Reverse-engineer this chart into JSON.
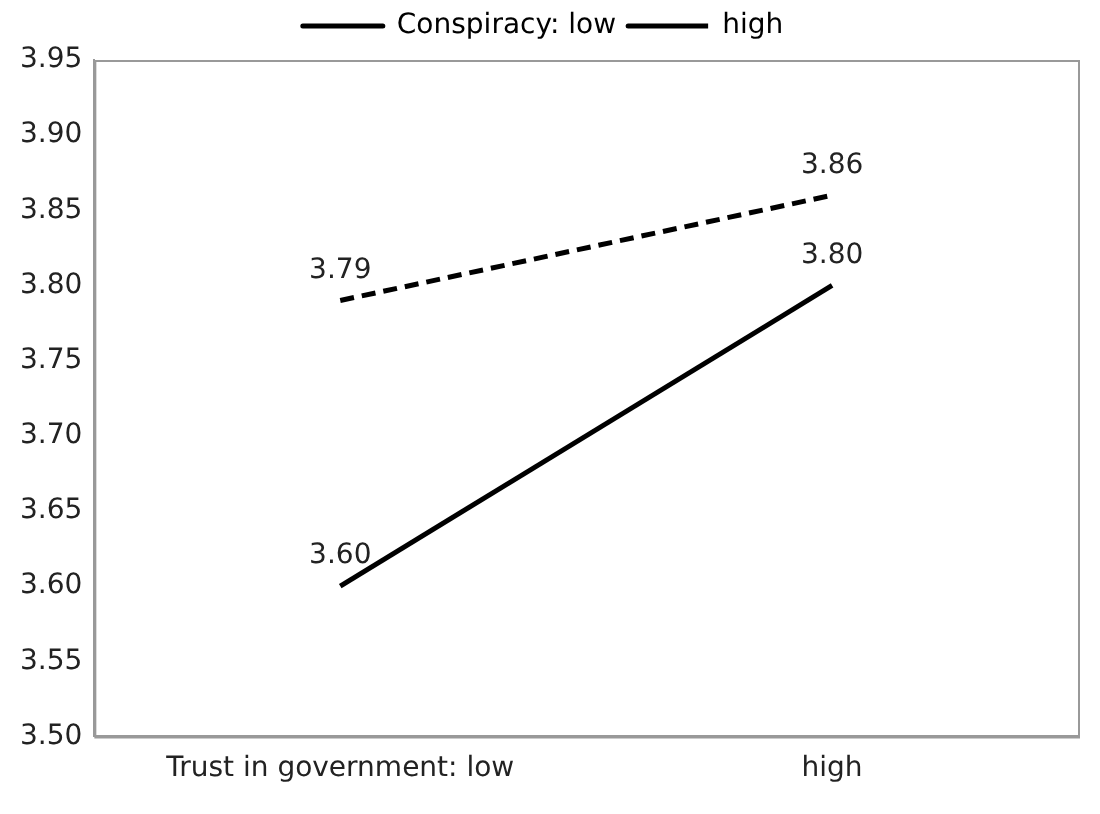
{
  "chart_data": {
    "type": "line",
    "categories": [
      "Trust in government: low",
      "high"
    ],
    "series": [
      {
        "name": "Conspiracy: low",
        "color": "#000000",
        "values": [
          3.6,
          3.8
        ],
        "value_labels": [
          "3.60",
          "3.80"
        ],
        "line_style": "solid"
      },
      {
        "name": "high",
        "color": "#000000",
        "values": [
          3.79,
          3.86
        ],
        "value_labels": [
          "3.79",
          "3.86"
        ],
        "line_style": "dashed"
      }
    ],
    "ylim": [
      3.5,
      3.95
    ],
    "yticks": [
      {
        "value": 3.5,
        "label": "3.50"
      },
      {
        "value": 3.55,
        "label": "3.55"
      },
      {
        "value": 3.6,
        "label": "3.60"
      },
      {
        "value": 3.65,
        "label": "3.65"
      },
      {
        "value": 3.7,
        "label": "3.70"
      },
      {
        "value": 3.75,
        "label": "3.75"
      },
      {
        "value": 3.8,
        "label": "3.80"
      },
      {
        "value": 3.85,
        "label": "3.85"
      },
      {
        "value": 3.9,
        "label": "3.90"
      },
      {
        "value": 3.95,
        "label": "3.95"
      }
    ],
    "grid": false,
    "legend": "top",
    "marker": "none"
  }
}
